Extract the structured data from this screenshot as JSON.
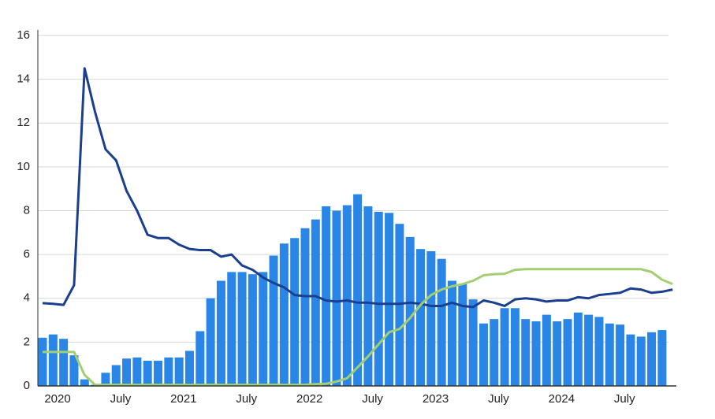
{
  "chart_data": {
    "type": "bar-line",
    "categories": [
      "2020",
      null,
      null,
      null,
      null,
      null,
      "July",
      null,
      null,
      null,
      null,
      null,
      "2021",
      null,
      null,
      null,
      null,
      null,
      "July",
      null,
      null,
      null,
      null,
      null,
      "2022",
      null,
      null,
      null,
      null,
      null,
      "July",
      null,
      null,
      null,
      null,
      null,
      "2023",
      null,
      null,
      null,
      null,
      null,
      "July",
      null,
      null,
      null,
      null,
      null,
      "2024",
      null,
      null,
      null,
      null,
      null,
      "July",
      null,
      null,
      null,
      null,
      null,
      null
    ],
    "series": [
      {
        "kind": "bar",
        "color": "#2a86e6",
        "values": [
          2.2,
          2.35,
          2.15,
          1.4,
          0.3,
          0.05,
          0.6,
          0.95,
          1.25,
          1.3,
          1.15,
          1.15,
          1.3,
          1.3,
          1.6,
          2.5,
          4.0,
          4.8,
          5.2,
          5.2,
          5.1,
          5.2,
          5.95,
          6.5,
          6.75,
          7.2,
          7.6,
          8.2,
          8.0,
          8.25,
          8.75,
          8.2,
          7.95,
          7.9,
          7.4,
          6.8,
          6.25,
          6.15,
          5.8,
          4.8,
          4.65,
          3.95,
          2.85,
          3.05,
          3.55,
          3.55,
          3.05,
          2.95,
          3.25,
          2.95,
          3.05,
          3.35,
          3.25,
          3.15,
          2.85,
          2.8,
          2.35,
          2.25,
          2.45,
          2.55,
          null
        ]
      },
      {
        "kind": "line",
        "color": "#1a3f8f",
        "values": [
          3.78,
          3.75,
          3.7,
          4.6,
          14.5,
          12.5,
          10.8,
          10.3,
          8.9,
          8.0,
          6.9,
          6.75,
          6.75,
          6.45,
          6.25,
          6.2,
          6.2,
          5.9,
          6.0,
          5.5,
          5.3,
          4.95,
          4.7,
          4.5,
          4.15,
          4.1,
          4.1,
          3.9,
          3.85,
          3.9,
          3.8,
          3.8,
          3.75,
          3.75,
          3.75,
          3.8,
          3.75,
          3.65,
          3.65,
          3.8,
          3.65,
          3.6,
          3.9,
          3.8,
          3.65,
          3.95,
          4.0,
          3.95,
          3.85,
          3.9,
          3.9,
          4.05,
          4.0,
          4.15,
          4.2,
          4.25,
          4.45,
          4.4,
          4.25,
          4.3,
          4.4
        ]
      },
      {
        "kind": "line",
        "color": "#a3cf72",
        "values": [
          1.55,
          1.55,
          1.55,
          1.55,
          0.5,
          0.05,
          0.05,
          0.05,
          0.05,
          0.05,
          0.05,
          0.05,
          0.05,
          0.05,
          0.05,
          0.05,
          0.05,
          0.05,
          0.05,
          0.05,
          0.05,
          0.05,
          0.05,
          0.05,
          0.05,
          0.05,
          0.08,
          0.1,
          0.2,
          0.35,
          0.85,
          1.35,
          1.9,
          2.45,
          2.6,
          3.1,
          3.7,
          4.15,
          4.4,
          4.55,
          4.65,
          4.8,
          5.05,
          5.1,
          5.12,
          5.3,
          5.33,
          5.33,
          5.33,
          5.33,
          5.33,
          5.33,
          5.33,
          5.33,
          5.33,
          5.33,
          5.33,
          5.33,
          5.2,
          4.85,
          4.65
        ]
      }
    ],
    "ylim": [
      0,
      16
    ],
    "yticks": [
      0,
      2,
      4,
      6,
      8,
      10,
      12,
      14,
      16
    ],
    "grid": true
  }
}
